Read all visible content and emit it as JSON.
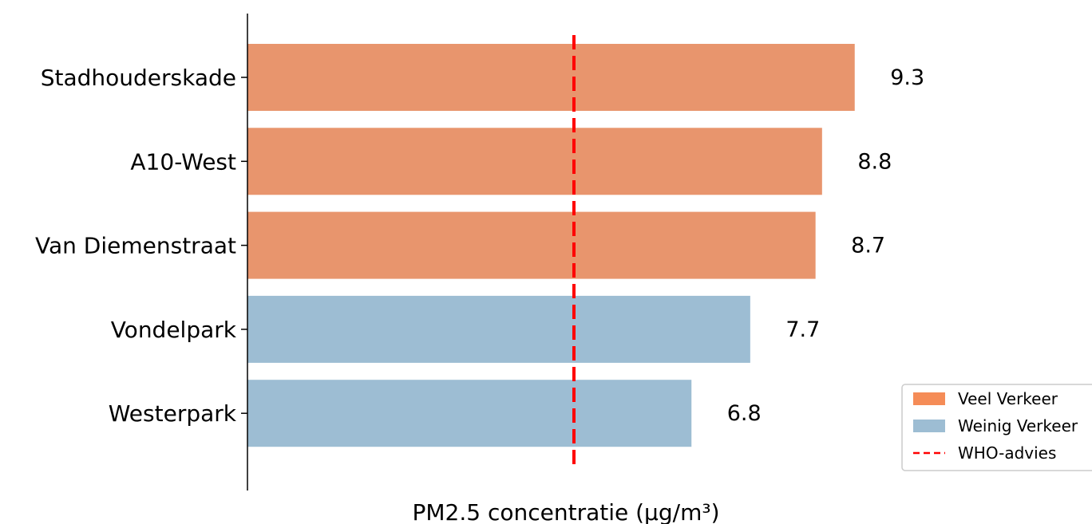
{
  "chart_data": {
    "type": "bar",
    "orientation": "horizontal",
    "categories": [
      "Stadhouderskade",
      "A10-West",
      "Van Diemenstraat",
      "Vondelpark",
      "Westerpark"
    ],
    "values": [
      9.3,
      8.8,
      8.7,
      7.7,
      6.8
    ],
    "value_labels": [
      "9.3",
      "8.8",
      "8.7",
      "7.7",
      "6.8"
    ],
    "groups": [
      "Veel Verkeer",
      "Veel Verkeer",
      "Veel Verkeer",
      "Weinig Verkeer",
      "Weinig Verkeer"
    ],
    "series": [
      {
        "name": "Veel Verkeer",
        "color": "#e8956d",
        "legend_color": "#f58c57"
      },
      {
        "name": "Weinig Verkeer",
        "color": "#9dbdd3",
        "legend_color": "#9dbdd3"
      }
    ],
    "reference_line": {
      "name": "WHO-advies",
      "value": 5,
      "color": "#ff0000",
      "style": "dashed"
    },
    "title": "",
    "xlabel": "PM2.5 concentratie (µg/m³)",
    "ylabel": "",
    "xlim": [
      0,
      10.6
    ],
    "grid": false,
    "legend_position": "bottom-right"
  }
}
